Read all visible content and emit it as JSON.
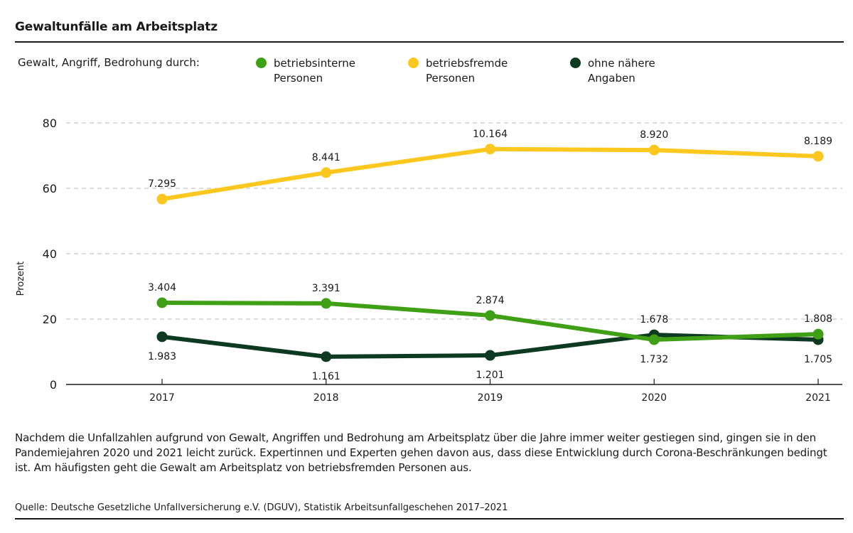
{
  "title": "Gewaltunfälle am Arbeitsplatz",
  "legend": {
    "lead": "Gewalt, Angriff, Bedrohung durch:",
    "items": [
      {
        "label": "betriebsinterne Personen",
        "color": "#3fa015"
      },
      {
        "label": "betriebsfremde Personen",
        "color": "#fcc820"
      },
      {
        "label": "ohne nähere Angaben",
        "color": "#0e3a22"
      }
    ]
  },
  "description": "Nachdem die Unfallzahlen aufgrund von Gewalt, Angriffen und Bedrohung am Arbeitsplatz über die Jahre immer weiter gestiegen sind, gingen sie in den Pandemiejahren 2020 und 2021 leicht zurück. Expertinnen und Experten gehen davon aus, dass diese Entwicklung durch Corona-Beschränkungen bedingt ist. Am häufigsten geht die Gewalt am Arbeitsplatz von betriebsfremden Personen aus.",
  "source": "Quelle: Deutsche Gesetzliche Unfallversicherung e.V. (DGUV), Statistik Arbeitsunfallgeschehen 2017–2021",
  "chart_data": {
    "type": "line",
    "title": "Gewaltunfälle am Arbeitsplatz",
    "xlabel": "",
    "ylabel": "Prozent",
    "x": [
      "2017",
      "2018",
      "2019",
      "2020",
      "2021"
    ],
    "ylim": [
      0,
      80
    ],
    "yticks": [
      0,
      20,
      40,
      60,
      80
    ],
    "grid": true,
    "legend_position": "top",
    "series": [
      {
        "name": "betriebsfremde Personen",
        "color": "#fcc820",
        "values": [
          56.7,
          64.8,
          72.0,
          71.7,
          69.8
        ],
        "labels": [
          "7.295",
          "8.441",
          "10.164",
          "8.920",
          "8.189"
        ],
        "label_position": [
          "above",
          "above",
          "above",
          "above",
          "above"
        ]
      },
      {
        "name": "ohne nähere Angaben",
        "color": "#0e3a22",
        "values": [
          14.6,
          8.5,
          8.9,
          15.2,
          13.7
        ],
        "labels": [
          "1.983",
          "1.161",
          "1.201",
          "1.678",
          "1.705"
        ],
        "label_position": [
          "below",
          "below",
          "below",
          "above",
          "below"
        ]
      },
      {
        "name": "betriebsinterne Personen",
        "color": "#3fa015",
        "values": [
          25.0,
          24.8,
          21.1,
          13.7,
          15.4
        ],
        "labels": [
          "3.404",
          "3.391",
          "2.874",
          "1.732",
          "1.808"
        ],
        "label_position": [
          "above",
          "above",
          "above",
          "below",
          "above"
        ]
      }
    ]
  }
}
